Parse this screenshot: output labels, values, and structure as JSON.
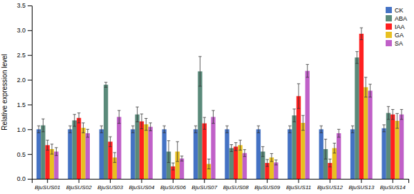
{
  "chart_data": {
    "type": "bar",
    "categories": [
      "BjuSUS01",
      "BjuSUS02",
      "BjuSUS03",
      "BjuSUS04",
      "BjuSUS06",
      "BjuSUS07",
      "BjuSUS08",
      "BjuSUS09",
      "BjuSUS11",
      "BjuSUS12",
      "BjuSUS13",
      "BjuSUS14"
    ],
    "series": [
      {
        "name": "CK",
        "color": "#4472C4",
        "values": [
          1.0,
          1.0,
          1.0,
          1.0,
          1.0,
          1.0,
          1.0,
          1.0,
          1.0,
          1.0,
          1.0,
          1.02
        ],
        "errors": [
          0.07,
          0.07,
          0.07,
          0.07,
          0.07,
          0.07,
          0.07,
          0.07,
          0.07,
          0.07,
          0.07,
          0.07
        ]
      },
      {
        "name": "ABA",
        "color": "#5A8A7A",
        "values": [
          1.08,
          1.18,
          1.9,
          1.3,
          0.55,
          2.17,
          0.62,
          0.55,
          1.28,
          0.6,
          2.45,
          1.33
        ],
        "errors": [
          0.13,
          0.12,
          0.05,
          0.15,
          0.22,
          0.3,
          0.07,
          0.1,
          0.13,
          0.2,
          0.12,
          0.13
        ]
      },
      {
        "name": "IAA",
        "color": "#FF2020",
        "values": [
          0.68,
          1.23,
          0.75,
          1.16,
          0.25,
          1.12,
          0.65,
          0.32,
          1.67,
          0.32,
          2.93,
          1.3
        ],
        "errors": [
          0.1,
          0.1,
          0.1,
          0.15,
          0.07,
          0.12,
          0.08,
          0.07,
          0.25,
          0.08,
          0.12,
          0.1
        ]
      },
      {
        "name": "GA",
        "color": "#E8C020",
        "values": [
          0.6,
          1.03,
          0.43,
          1.1,
          0.55,
          0.3,
          0.68,
          0.43,
          1.13,
          0.62,
          1.85,
          1.17
        ],
        "errors": [
          0.1,
          0.1,
          0.1,
          0.12,
          0.2,
          0.1,
          0.1,
          0.08,
          0.15,
          0.1,
          0.2,
          0.15
        ]
      },
      {
        "name": "SA",
        "color": "#C060C8",
        "values": [
          0.55,
          0.92,
          1.25,
          1.05,
          0.41,
          1.25,
          0.52,
          0.33,
          2.18,
          0.92,
          1.78,
          1.3
        ],
        "errors": [
          0.08,
          0.08,
          0.13,
          0.08,
          0.05,
          0.13,
          0.07,
          0.05,
          0.13,
          0.08,
          0.13,
          0.1
        ]
      }
    ],
    "ylabel": "Relative expression level",
    "ylim": [
      0,
      3.5
    ],
    "yticks": [
      {
        "value": 0.0,
        "label": "0.0"
      },
      0.5,
      {
        "value": 1.0,
        "label": "1.0"
      },
      1.5,
      {
        "value": 2.0,
        "label": "2.0"
      },
      2.5,
      {
        "value": 3.0,
        "label": "3.0"
      },
      3.5
    ],
    "grid": false,
    "legend": "top-right"
  }
}
